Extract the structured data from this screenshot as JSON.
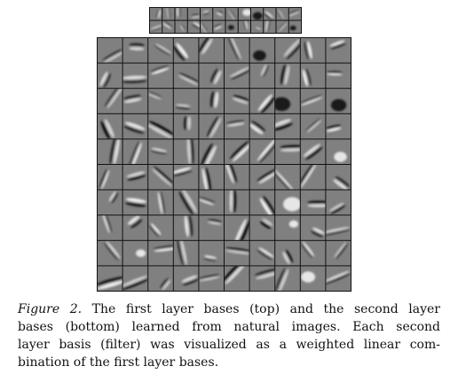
{
  "figure": {
    "first_layer": {
      "rows": 2,
      "cols": 12
    },
    "second_layer": {
      "rows": 10,
      "cols": 10
    },
    "colors": {
      "background": "#808080",
      "border": "#111111",
      "light": "#ffffff",
      "dark": "#000000"
    }
  },
  "caption": {
    "label": "Figure 2.",
    "lines": [
      " The first layer bases (top) and the second layer",
      "bases (bottom) learned from natural images. Each second",
      "layer basis (filter) was visualized as a weighted linear com-",
      "bination of the first layer bases."
    ]
  }
}
